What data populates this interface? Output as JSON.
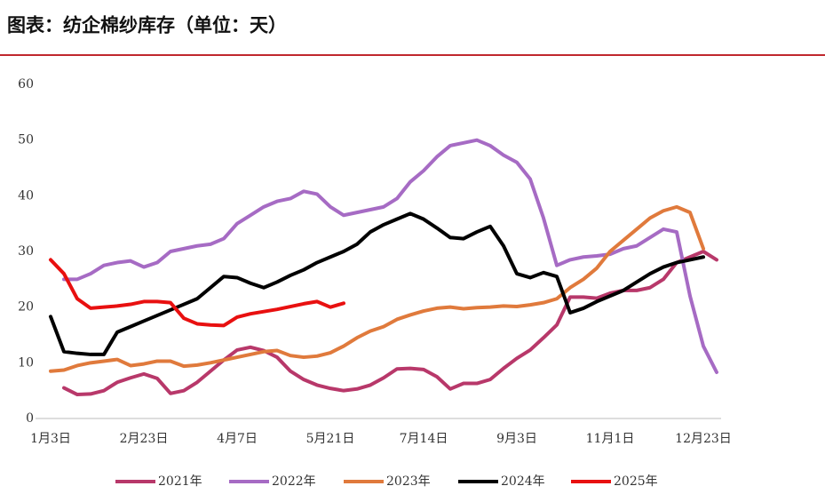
{
  "chart_data": {
    "type": "line",
    "title": "图表：纺企棉纱库存（单位：天）",
    "categories": [
      "1月3日",
      null,
      null,
      null,
      null,
      null,
      null,
      "2月23日",
      null,
      null,
      null,
      null,
      null,
      null,
      "4月7日",
      null,
      null,
      null,
      null,
      null,
      null,
      "5月21日",
      null,
      null,
      null,
      null,
      null,
      null,
      "7月14日",
      null,
      null,
      null,
      null,
      null,
      null,
      "9月3日",
      null,
      null,
      null,
      null,
      null,
      null,
      "11月1日",
      null,
      null,
      null,
      null,
      null,
      null,
      "12月23日",
      null
    ],
    "ylim": [
      0,
      60
    ],
    "yticks": [
      0,
      10,
      20,
      30,
      40,
      50,
      60
    ],
    "grid": false,
    "legend": "bottom",
    "series": [
      {
        "name": "2021年",
        "color": "#b8386a",
        "values": [
          null,
          5.5,
          4.3,
          4.4,
          5,
          6.5,
          7.3,
          8,
          7.2,
          4.5,
          5,
          6.5,
          8.5,
          10.5,
          12.3,
          12.8,
          12.2,
          11,
          8.5,
          7,
          6,
          5.4,
          5,
          5.3,
          6,
          7.3,
          8.9,
          9,
          8.8,
          7.5,
          5.3,
          6.3,
          6.3,
          7,
          9,
          10.8,
          12.3,
          14.5,
          16.8,
          21.8,
          21.8,
          21.6,
          22.5,
          23,
          23,
          23.5,
          25,
          28,
          29,
          30,
          28.5
        ]
      },
      {
        "name": "2022年",
        "color": "#a66bc4",
        "values": [
          null,
          25,
          25,
          26,
          27.5,
          28,
          28.3,
          27.2,
          28,
          30,
          30.5,
          31,
          31.3,
          32.3,
          35,
          36.5,
          38,
          39,
          39.5,
          40.8,
          40.3,
          38,
          36.5,
          37,
          37.5,
          38,
          39.5,
          42.5,
          44.5,
          47,
          49,
          49.5,
          50,
          49,
          47.3,
          46,
          43,
          36,
          27.5,
          28.5,
          29,
          29.2,
          29.5,
          30.5,
          31,
          32.5,
          34,
          33.5,
          22,
          13,
          8.3
        ]
      },
      {
        "name": "2023年",
        "color": "#e07a3c",
        "values": [
          8.5,
          8.7,
          9.5,
          10,
          10.3,
          10.6,
          9.5,
          9.8,
          10.3,
          10.3,
          9.4,
          9.6,
          10,
          10.5,
          11,
          11.5,
          12,
          12.2,
          11.3,
          11,
          11.2,
          11.8,
          13,
          14.5,
          15.7,
          16.5,
          17.8,
          18.6,
          19.3,
          19.8,
          20,
          19.7,
          19.9,
          20,
          20.2,
          20.1,
          20.4,
          20.8,
          21.5,
          23.5,
          25,
          27,
          30,
          32,
          34,
          36,
          37.3,
          38,
          37,
          30.5,
          null
        ]
      },
      {
        "name": "2024年",
        "color": "#000000",
        "values": [
          18.3,
          12,
          11.7,
          11.5,
          11.5,
          15.5,
          16.5,
          17.5,
          18.5,
          19.5,
          20.5,
          21.5,
          23.5,
          25.5,
          25.3,
          24.3,
          23.5,
          24.5,
          25.7,
          26.7,
          28,
          29,
          30,
          31.3,
          33.5,
          34.8,
          35.8,
          36.8,
          35.8,
          34.2,
          32.5,
          32.3,
          33.5,
          34.5,
          31,
          26,
          25.3,
          26.2,
          25.5,
          19,
          19.8,
          21,
          22,
          23,
          24.5,
          26,
          27.2,
          28,
          28.5,
          29,
          null
        ]
      },
      {
        "name": "2025年",
        "color": "#e81010",
        "values": [
          28.5,
          26,
          21.5,
          19.8,
          20,
          20.2,
          20.5,
          21,
          21,
          20.8,
          18,
          17,
          16.8,
          16.7,
          18.2,
          18.8,
          19.2,
          19.6,
          20.1,
          20.6,
          21,
          20,
          20.7,
          null,
          null,
          null,
          null,
          null,
          null,
          null,
          null,
          null,
          null,
          null,
          null,
          null,
          null,
          null,
          null,
          null,
          null,
          null,
          null,
          null,
          null,
          null,
          null,
          null,
          null,
          null,
          null
        ]
      }
    ]
  }
}
